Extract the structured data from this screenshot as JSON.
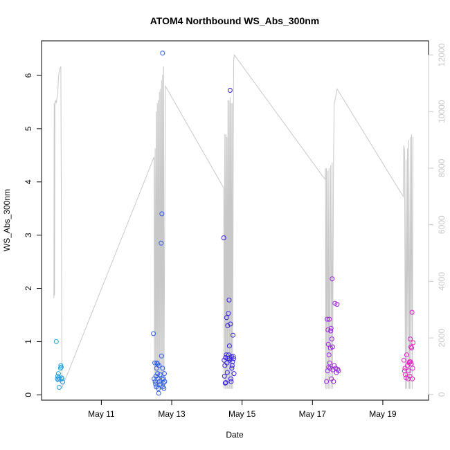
{
  "chart_data": {
    "type": "scatter",
    "title": "ATOM4 Northbound WS_Abs_300nm",
    "xlabel": "Date",
    "ylabel": "WS_Abs_300nm",
    "x_ticks": [
      "May 11",
      "May 13",
      "May 15",
      "May 17",
      "May 19"
    ],
    "x_tick_days": [
      11,
      13,
      15,
      17,
      19
    ],
    "xlim_days": [
      9.3,
      20.3
    ],
    "ylim": [
      -0.1,
      6.65
    ],
    "y_ticks": [
      0,
      1,
      2,
      3,
      4,
      5,
      6
    ],
    "y2_ticks": [
      0,
      2000,
      4000,
      6000,
      8000,
      10000,
      12000
    ],
    "y2lim": [
      -200,
      12500
    ],
    "grid": false,
    "series": [
      {
        "color": "#1ea0e0",
        "points": [
          [
            9.72,
            1.0
          ],
          [
            9.75,
            0.3
          ],
          [
            9.76,
            0.35
          ],
          [
            9.77,
            0.28
          ],
          [
            9.78,
            0.4
          ],
          [
            9.79,
            0.32
          ],
          [
            9.8,
            0.14
          ],
          [
            9.82,
            0.3
          ],
          [
            9.84,
            0.5
          ],
          [
            9.85,
            0.55
          ],
          [
            9.86,
            0.52
          ],
          [
            9.87,
            0.32
          ],
          [
            9.88,
            0.3
          ],
          [
            9.9,
            0.24
          ]
        ]
      },
      {
        "color": "#2a5ae8",
        "points": [
          [
            12.48,
            1.15
          ],
          [
            12.5,
            0.3
          ],
          [
            12.52,
            0.6
          ],
          [
            12.53,
            0.25
          ],
          [
            12.54,
            0.2
          ],
          [
            12.55,
            0.35
          ],
          [
            12.56,
            0.15
          ],
          [
            12.57,
            0.5
          ],
          [
            12.58,
            0.6
          ],
          [
            12.6,
            0.4
          ],
          [
            12.61,
            0.3
          ],
          [
            12.62,
            0.12
          ],
          [
            12.63,
            0.03
          ],
          [
            12.64,
            0.55
          ],
          [
            12.65,
            0.25
          ],
          [
            12.67,
            0.38
          ],
          [
            12.68,
            0.2
          ],
          [
            12.7,
            2.85
          ],
          [
            12.71,
            0.73
          ],
          [
            12.72,
            3.4
          ],
          [
            12.73,
            0.3
          ],
          [
            12.74,
            0.5
          ],
          [
            12.75,
            0.15
          ],
          [
            12.76,
            0.22
          ],
          [
            12.77,
            0.3
          ],
          [
            12.78,
            0.12
          ],
          [
            12.79,
            0.4
          ],
          [
            12.8,
            0.25
          ],
          [
            12.74,
            6.42
          ],
          [
            12.6,
            0.58
          ]
        ]
      },
      {
        "color": "#3520e0",
        "points": [
          [
            14.48,
            2.95
          ],
          [
            14.49,
            0.65
          ],
          [
            14.5,
            0.35
          ],
          [
            14.51,
            0.55
          ],
          [
            14.52,
            0.22
          ],
          [
            14.53,
            0.7
          ],
          [
            14.54,
            0.23
          ],
          [
            14.55,
            0.75
          ],
          [
            14.56,
            1.45
          ],
          [
            14.57,
            0.6
          ],
          [
            14.58,
            0.42
          ],
          [
            14.59,
            1.3
          ],
          [
            14.6,
            0.68
          ],
          [
            14.61,
            1.53
          ],
          [
            14.62,
            0.75
          ],
          [
            14.63,
            1.78
          ],
          [
            14.64,
            0.92
          ],
          [
            14.65,
            0.65
          ],
          [
            14.66,
            5.72
          ],
          [
            14.67,
            1.33
          ],
          [
            14.68,
            0.3
          ],
          [
            14.69,
            0.25
          ],
          [
            14.7,
            0.72
          ],
          [
            14.71,
            0.5
          ],
          [
            14.72,
            0.55
          ],
          [
            14.73,
            0.62
          ],
          [
            14.74,
            1.12
          ],
          [
            14.75,
            0.72
          ],
          [
            14.76,
            0.68
          ],
          [
            14.77,
            0.4
          ],
          [
            14.64,
            0.68
          ]
        ]
      },
      {
        "color": "#9a20e0",
        "points": [
          [
            17.4,
            0.25
          ],
          [
            17.42,
            1.42
          ],
          [
            17.43,
            0.45
          ],
          [
            17.44,
            1.22
          ],
          [
            17.45,
            0.95
          ],
          [
            17.46,
            0.52
          ],
          [
            17.47,
            0.75
          ],
          [
            17.48,
            1.42
          ],
          [
            17.49,
            0.6
          ],
          [
            17.5,
            0.5
          ],
          [
            17.51,
            0.88
          ],
          [
            17.52,
            1.2
          ],
          [
            17.53,
            1.25
          ],
          [
            17.54,
            0.3
          ],
          [
            17.55,
            1.05
          ],
          [
            17.56,
            2.18
          ],
          [
            17.57,
            0.9
          ],
          [
            17.58,
            0.47
          ],
          [
            17.6,
            0.25
          ],
          [
            17.62,
            0.55
          ],
          [
            17.64,
            1.72
          ],
          [
            17.66,
            0.5
          ],
          [
            17.68,
            0.42
          ],
          [
            17.7,
            1.7
          ],
          [
            17.72,
            0.48
          ],
          [
            17.74,
            0.45
          ]
        ]
      },
      {
        "color": "#e020c8",
        "points": [
          [
            19.6,
            0.65
          ],
          [
            19.62,
            0.45
          ],
          [
            19.63,
            0.5
          ],
          [
            19.64,
            0.38
          ],
          [
            19.66,
            0.32
          ],
          [
            19.68,
            0.75
          ],
          [
            19.7,
            0.55
          ],
          [
            19.72,
            0.3
          ],
          [
            19.74,
            0.45
          ],
          [
            19.75,
            0.6
          ],
          [
            19.76,
            0.62
          ],
          [
            19.77,
            0.35
          ],
          [
            19.78,
            1.05
          ],
          [
            19.79,
            0.62
          ],
          [
            19.8,
            0.9
          ],
          [
            19.81,
            0.58
          ],
          [
            19.82,
            0.88
          ],
          [
            19.83,
            1.55
          ],
          [
            19.84,
            0.3
          ],
          [
            19.85,
            0.5
          ],
          [
            19.86,
            0.98
          ]
        ]
      }
    ],
    "gray_line": {
      "color": "#c8c8c8",
      "axis": "right",
      "description_free": true,
      "points": [
        [
          9.65,
          3400
        ],
        [
          9.66,
          10300
        ],
        [
          9.67,
          3500
        ],
        [
          9.68,
          10200
        ],
        [
          9.7,
          10400
        ],
        [
          9.72,
          10300
        ],
        [
          9.74,
          10500
        ],
        [
          9.76,
          10600
        ],
        [
          9.78,
          11200
        ],
        [
          9.8,
          11400
        ],
        [
          9.82,
          11500
        ],
        [
          9.85,
          11600
        ],
        [
          9.88,
          200
        ],
        [
          9.9,
          300
        ],
        [
          12.5,
          8400
        ],
        [
          12.51,
          200
        ],
        [
          12.53,
          8700
        ],
        [
          12.54,
          200
        ],
        [
          12.56,
          10000
        ],
        [
          12.57,
          200
        ],
        [
          12.59,
          10300
        ],
        [
          12.6,
          200
        ],
        [
          12.62,
          10400
        ],
        [
          12.63,
          200
        ],
        [
          12.65,
          10700
        ],
        [
          12.66,
          200
        ],
        [
          12.68,
          10800
        ],
        [
          12.69,
          200
        ],
        [
          12.71,
          11100
        ],
        [
          12.72,
          200
        ],
        [
          12.74,
          11300
        ],
        [
          12.75,
          200
        ],
        [
          12.77,
          11600
        ],
        [
          12.78,
          200
        ],
        [
          12.82,
          10900
        ],
        [
          14.48,
          7300
        ],
        [
          14.49,
          200
        ],
        [
          14.51,
          9200
        ],
        [
          14.52,
          200
        ],
        [
          14.54,
          9200
        ],
        [
          14.55,
          200
        ],
        [
          14.57,
          9100
        ],
        [
          14.58,
          200
        ],
        [
          14.6,
          10400
        ],
        [
          14.61,
          200
        ],
        [
          14.63,
          10400
        ],
        [
          14.64,
          200
        ],
        [
          14.66,
          10500
        ],
        [
          14.67,
          200
        ],
        [
          14.69,
          10300
        ],
        [
          14.7,
          200
        ],
        [
          14.72,
          10300
        ],
        [
          14.73,
          200
        ],
        [
          14.76,
          11800
        ],
        [
          14.78,
          12000
        ],
        [
          17.36,
          7600
        ],
        [
          17.37,
          8000
        ],
        [
          17.38,
          200
        ],
        [
          17.4,
          8000
        ],
        [
          17.41,
          200
        ],
        [
          17.44,
          7900
        ],
        [
          17.45,
          200
        ],
        [
          17.47,
          8000
        ],
        [
          17.48,
          200
        ],
        [
          17.52,
          8100
        ],
        [
          17.53,
          200
        ],
        [
          17.56,
          8200
        ],
        [
          17.57,
          200
        ],
        [
          17.6,
          8400
        ],
        [
          17.62,
          10300
        ],
        [
          17.66,
          10500
        ],
        [
          17.7,
          10800
        ],
        [
          19.58,
          7000
        ],
        [
          19.59,
          8500
        ],
        [
          19.6,
          8800
        ],
        [
          19.62,
          8600
        ],
        [
          19.64,
          200
        ],
        [
          19.66,
          8300
        ],
        [
          19.68,
          200
        ],
        [
          19.7,
          8700
        ],
        [
          19.72,
          200
        ],
        [
          19.74,
          9000
        ],
        [
          19.76,
          200
        ],
        [
          19.78,
          9100
        ],
        [
          19.8,
          200
        ],
        [
          19.82,
          9200
        ],
        [
          19.84,
          200
        ],
        [
          19.86,
          9100
        ]
      ]
    }
  }
}
